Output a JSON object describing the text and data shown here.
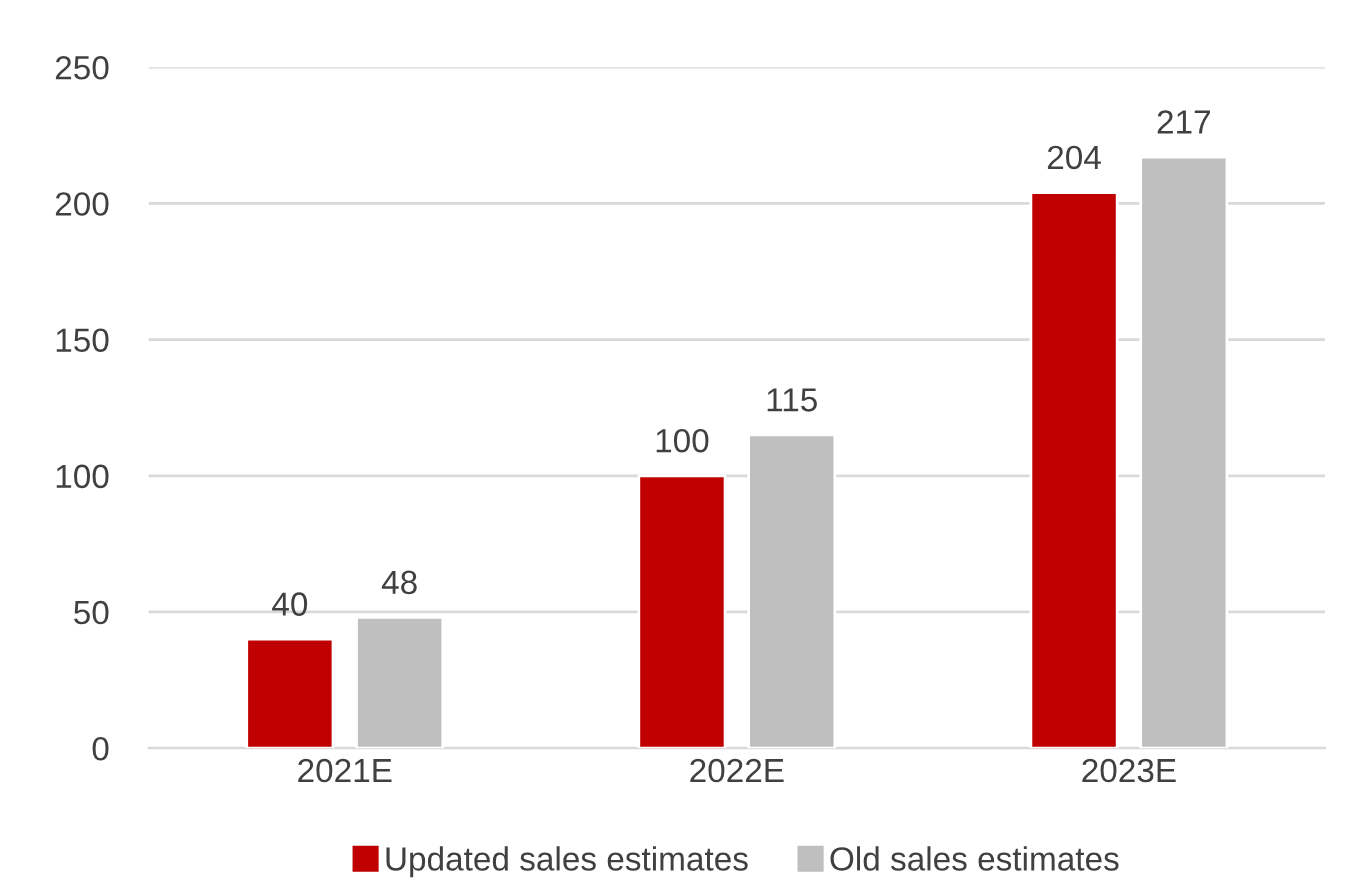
{
  "chart_data": {
    "type": "bar",
    "categories": [
      "2021E",
      "2022E",
      "2023E"
    ],
    "series": [
      {
        "name": "Updated sales estimates",
        "color": "#c00000",
        "values": [
          40,
          100,
          204
        ]
      },
      {
        "name": "Old sales estimates",
        "color": "#bfbfbf",
        "values": [
          48,
          115,
          217
        ]
      }
    ],
    "ylim": [
      0,
      250
    ],
    "yticks": [
      0,
      50,
      100,
      150,
      200,
      250
    ],
    "grid": "y",
    "legend": "bottom",
    "data_labels": true
  }
}
